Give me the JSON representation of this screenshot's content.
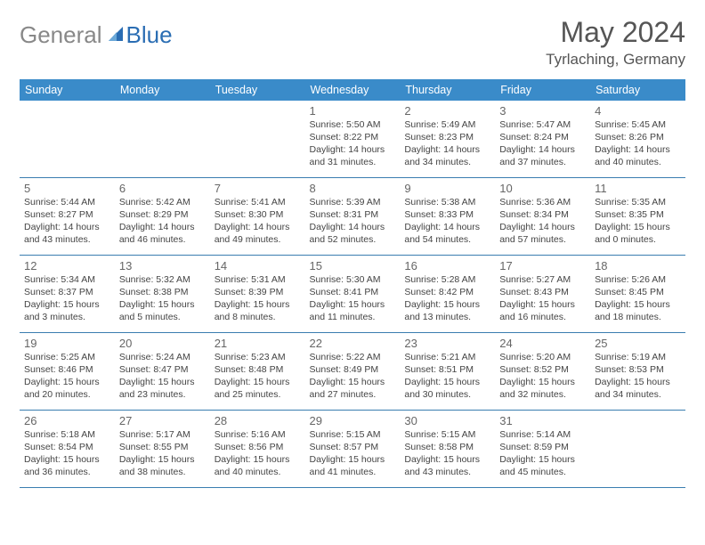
{
  "logo": {
    "general": "General",
    "blue": "Blue"
  },
  "title": {
    "month": "May 2024",
    "location": "Tyrlaching, Germany"
  },
  "colors": {
    "header_bg": "#3a8bc9",
    "row_border": "#3a7db0",
    "logo_gray": "#888888",
    "logo_blue": "#2a6db3",
    "title_color": "#555555",
    "daynum_color": "#666666",
    "info_color": "#444444"
  },
  "day_names": [
    "Sunday",
    "Monday",
    "Tuesday",
    "Wednesday",
    "Thursday",
    "Friday",
    "Saturday"
  ],
  "weeks": [
    [
      {
        "n": "",
        "sr": "",
        "ss": "",
        "dl": ""
      },
      {
        "n": "",
        "sr": "",
        "ss": "",
        "dl": ""
      },
      {
        "n": "",
        "sr": "",
        "ss": "",
        "dl": ""
      },
      {
        "n": "1",
        "sr": "5:50 AM",
        "ss": "8:22 PM",
        "dl": "14 hours and 31 minutes."
      },
      {
        "n": "2",
        "sr": "5:49 AM",
        "ss": "8:23 PM",
        "dl": "14 hours and 34 minutes."
      },
      {
        "n": "3",
        "sr": "5:47 AM",
        "ss": "8:24 PM",
        "dl": "14 hours and 37 minutes."
      },
      {
        "n": "4",
        "sr": "5:45 AM",
        "ss": "8:26 PM",
        "dl": "14 hours and 40 minutes."
      }
    ],
    [
      {
        "n": "5",
        "sr": "5:44 AM",
        "ss": "8:27 PM",
        "dl": "14 hours and 43 minutes."
      },
      {
        "n": "6",
        "sr": "5:42 AM",
        "ss": "8:29 PM",
        "dl": "14 hours and 46 minutes."
      },
      {
        "n": "7",
        "sr": "5:41 AM",
        "ss": "8:30 PM",
        "dl": "14 hours and 49 minutes."
      },
      {
        "n": "8",
        "sr": "5:39 AM",
        "ss": "8:31 PM",
        "dl": "14 hours and 52 minutes."
      },
      {
        "n": "9",
        "sr": "5:38 AM",
        "ss": "8:33 PM",
        "dl": "14 hours and 54 minutes."
      },
      {
        "n": "10",
        "sr": "5:36 AM",
        "ss": "8:34 PM",
        "dl": "14 hours and 57 minutes."
      },
      {
        "n": "11",
        "sr": "5:35 AM",
        "ss": "8:35 PM",
        "dl": "15 hours and 0 minutes."
      }
    ],
    [
      {
        "n": "12",
        "sr": "5:34 AM",
        "ss": "8:37 PM",
        "dl": "15 hours and 3 minutes."
      },
      {
        "n": "13",
        "sr": "5:32 AM",
        "ss": "8:38 PM",
        "dl": "15 hours and 5 minutes."
      },
      {
        "n": "14",
        "sr": "5:31 AM",
        "ss": "8:39 PM",
        "dl": "15 hours and 8 minutes."
      },
      {
        "n": "15",
        "sr": "5:30 AM",
        "ss": "8:41 PM",
        "dl": "15 hours and 11 minutes."
      },
      {
        "n": "16",
        "sr": "5:28 AM",
        "ss": "8:42 PM",
        "dl": "15 hours and 13 minutes."
      },
      {
        "n": "17",
        "sr": "5:27 AM",
        "ss": "8:43 PM",
        "dl": "15 hours and 16 minutes."
      },
      {
        "n": "18",
        "sr": "5:26 AM",
        "ss": "8:45 PM",
        "dl": "15 hours and 18 minutes."
      }
    ],
    [
      {
        "n": "19",
        "sr": "5:25 AM",
        "ss": "8:46 PM",
        "dl": "15 hours and 20 minutes."
      },
      {
        "n": "20",
        "sr": "5:24 AM",
        "ss": "8:47 PM",
        "dl": "15 hours and 23 minutes."
      },
      {
        "n": "21",
        "sr": "5:23 AM",
        "ss": "8:48 PM",
        "dl": "15 hours and 25 minutes."
      },
      {
        "n": "22",
        "sr": "5:22 AM",
        "ss": "8:49 PM",
        "dl": "15 hours and 27 minutes."
      },
      {
        "n": "23",
        "sr": "5:21 AM",
        "ss": "8:51 PM",
        "dl": "15 hours and 30 minutes."
      },
      {
        "n": "24",
        "sr": "5:20 AM",
        "ss": "8:52 PM",
        "dl": "15 hours and 32 minutes."
      },
      {
        "n": "25",
        "sr": "5:19 AM",
        "ss": "8:53 PM",
        "dl": "15 hours and 34 minutes."
      }
    ],
    [
      {
        "n": "26",
        "sr": "5:18 AM",
        "ss": "8:54 PM",
        "dl": "15 hours and 36 minutes."
      },
      {
        "n": "27",
        "sr": "5:17 AM",
        "ss": "8:55 PM",
        "dl": "15 hours and 38 minutes."
      },
      {
        "n": "28",
        "sr": "5:16 AM",
        "ss": "8:56 PM",
        "dl": "15 hours and 40 minutes."
      },
      {
        "n": "29",
        "sr": "5:15 AM",
        "ss": "8:57 PM",
        "dl": "15 hours and 41 minutes."
      },
      {
        "n": "30",
        "sr": "5:15 AM",
        "ss": "8:58 PM",
        "dl": "15 hours and 43 minutes."
      },
      {
        "n": "31",
        "sr": "5:14 AM",
        "ss": "8:59 PM",
        "dl": "15 hours and 45 minutes."
      },
      {
        "n": "",
        "sr": "",
        "ss": "",
        "dl": ""
      }
    ]
  ],
  "labels": {
    "sunrise": "Sunrise:",
    "sunset": "Sunset:",
    "daylight": "Daylight:"
  }
}
